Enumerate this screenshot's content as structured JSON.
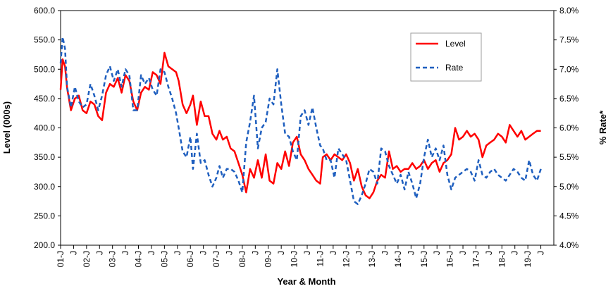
{
  "chart_data": {
    "type": "line",
    "title": "",
    "xlabel": "Year & Month",
    "ylabel_left": "Level (000s)",
    "ylabel_right": "% Rate*",
    "ylim_left": [
      200,
      600
    ],
    "ylim_right": [
      4.0,
      8.0
    ],
    "yticks_left": [
      "200.0",
      "250.0",
      "300.0",
      "350.0",
      "400.0",
      "450.0",
      "500.0",
      "550.0",
      "600.0"
    ],
    "yticks_right": [
      "4.0%",
      "4.5%",
      "5.0%",
      "5.5%",
      "6.0%",
      "6.5%",
      "7.0%",
      "7.5%",
      "8.0%"
    ],
    "xticks": [
      "01-J",
      "J",
      "02-J",
      "J",
      "03-J",
      "J",
      "04-J",
      "J",
      "05-J",
      "J",
      "06-J",
      "J",
      "07-J",
      "J",
      "08-J",
      "J",
      "09-J",
      "J",
      "10-J",
      "J",
      "11-J",
      "J",
      "12-J",
      "J",
      "13-J",
      "J",
      "14-J",
      "J",
      "15-J",
      "J",
      "16-J",
      "J",
      "17-J",
      "J",
      "18-J",
      "J",
      "19-J",
      "J"
    ],
    "grid": false,
    "legend_position": "top-right",
    "series": [
      {
        "name": "Level",
        "axis": "left",
        "color": "#ff0000",
        "style": "solid",
        "x": [
          2001.0,
          2001.08,
          2001.17,
          2001.25,
          2001.4,
          2001.55,
          2001.7,
          2001.85,
          2002.0,
          2002.15,
          2002.3,
          2002.45,
          2002.6,
          2002.75,
          2002.9,
          2003.05,
          2003.2,
          2003.35,
          2003.5,
          2003.65,
          2003.8,
          2003.95,
          2004.1,
          2004.25,
          2004.4,
          2004.55,
          2004.7,
          2004.85,
          2005.0,
          2005.15,
          2005.3,
          2005.45,
          2005.55,
          2005.7,
          2005.85,
          2006.0,
          2006.1,
          2006.25,
          2006.4,
          2006.55,
          2006.7,
          2006.85,
          2007.0,
          2007.12,
          2007.25,
          2007.4,
          2007.55,
          2007.7,
          2007.85,
          2008.0,
          2008.15,
          2008.3,
          2008.45,
          2008.6,
          2008.75,
          2008.9,
          2009.05,
          2009.2,
          2009.35,
          2009.5,
          2009.65,
          2009.8,
          2009.95,
          2010.1,
          2010.25,
          2010.4,
          2010.55,
          2010.7,
          2010.85,
          2011.0,
          2011.1,
          2011.25,
          2011.4,
          2011.55,
          2011.7,
          2011.85,
          2012.0,
          2012.15,
          2012.3,
          2012.45,
          2012.6,
          2012.75,
          2012.9,
          2013.05,
          2013.2,
          2013.35,
          2013.5,
          2013.65,
          2013.8,
          2013.95,
          2014.1,
          2014.25,
          2014.4,
          2014.55,
          2014.7,
          2014.85,
          2015.0,
          2015.15,
          2015.3,
          2015.45,
          2015.6,
          2015.75,
          2015.9,
          2016.05,
          2016.2,
          2016.35,
          2016.5,
          2016.65,
          2016.8,
          2016.95,
          2017.1,
          2017.25,
          2017.4,
          2017.55,
          2017.7,
          2017.85,
          2018.0,
          2018.15,
          2018.3,
          2018.45,
          2018.6,
          2018.75,
          2018.9,
          2019.05,
          2019.2,
          2019.35,
          2019.5
        ],
        "values": [
          465,
          517,
          505,
          468,
          430,
          450,
          455,
          430,
          425,
          445,
          440,
          420,
          413,
          460,
          475,
          470,
          485,
          460,
          490,
          480,
          445,
          430,
          460,
          470,
          465,
          495,
          490,
          475,
          528,
          505,
          500,
          495,
          480,
          440,
          425,
          440,
          455,
          405,
          445,
          420,
          420,
          390,
          380,
          395,
          380,
          385,
          365,
          360,
          340,
          320,
          290,
          330,
          315,
          345,
          315,
          355,
          310,
          305,
          340,
          330,
          360,
          335,
          375,
          385,
          355,
          345,
          330,
          320,
          310,
          305,
          350,
          355,
          345,
          355,
          350,
          345,
          355,
          340,
          310,
          330,
          300,
          285,
          280,
          290,
          310,
          320,
          315,
          360,
          330,
          335,
          325,
          330,
          330,
          340,
          330,
          335,
          345,
          330,
          340,
          345,
          325,
          340,
          345,
          355,
          400,
          380,
          385,
          395,
          385,
          390,
          380,
          350,
          370,
          375,
          380,
          390,
          385,
          375,
          405,
          395,
          385,
          395,
          380,
          385,
          390,
          395,
          395
        ]
      },
      {
        "name": "Rate",
        "axis": "right",
        "color": "#1f5fbf",
        "style": "dashed",
        "x": [
          2001.0,
          2001.08,
          2001.17,
          2001.25,
          2001.4,
          2001.55,
          2001.7,
          2001.85,
          2002.0,
          2002.15,
          2002.3,
          2002.45,
          2002.6,
          2002.75,
          2002.9,
          2003.05,
          2003.2,
          2003.35,
          2003.5,
          2003.65,
          2003.8,
          2003.95,
          2004.1,
          2004.25,
          2004.4,
          2004.55,
          2004.7,
          2004.85,
          2005.0,
          2005.15,
          2005.3,
          2005.45,
          2005.55,
          2005.7,
          2005.85,
          2006.0,
          2006.1,
          2006.25,
          2006.4,
          2006.55,
          2006.7,
          2006.85,
          2007.0,
          2007.12,
          2007.25,
          2007.4,
          2007.55,
          2007.7,
          2007.85,
          2008.0,
          2008.15,
          2008.3,
          2008.45,
          2008.6,
          2008.75,
          2008.9,
          2009.05,
          2009.2,
          2009.35,
          2009.5,
          2009.65,
          2009.8,
          2009.95,
          2010.1,
          2010.25,
          2010.4,
          2010.55,
          2010.7,
          2010.85,
          2011.0,
          2011.1,
          2011.25,
          2011.4,
          2011.55,
          2011.7,
          2011.85,
          2012.0,
          2012.15,
          2012.3,
          2012.45,
          2012.6,
          2012.75,
          2012.9,
          2013.05,
          2013.2,
          2013.35,
          2013.5,
          2013.65,
          2013.8,
          2013.95,
          2014.1,
          2014.25,
          2014.4,
          2014.55,
          2014.7,
          2014.85,
          2015.0,
          2015.15,
          2015.3,
          2015.45,
          2015.6,
          2015.75,
          2015.9,
          2016.05,
          2016.2,
          2016.35,
          2016.5,
          2016.65,
          2016.8,
          2016.95,
          2017.1,
          2017.25,
          2017.4,
          2017.55,
          2017.7,
          2017.85,
          2018.0,
          2018.15,
          2018.3,
          2018.45,
          2018.6,
          2018.75,
          2018.9,
          2019.05,
          2019.2,
          2019.35,
          2019.5
        ],
        "values": [
          7.1,
          7.55,
          7.35,
          6.7,
          6.35,
          6.7,
          6.45,
          6.35,
          6.4,
          6.75,
          6.55,
          6.3,
          6.55,
          6.9,
          7.05,
          6.8,
          7.0,
          6.7,
          7.0,
          6.9,
          6.3,
          6.3,
          6.9,
          6.75,
          6.85,
          6.65,
          6.55,
          7.0,
          6.95,
          6.7,
          6.5,
          6.25,
          6.0,
          5.6,
          5.5,
          5.85,
          5.3,
          5.9,
          5.4,
          5.45,
          5.2,
          5.0,
          5.15,
          5.35,
          5.15,
          5.3,
          5.3,
          5.25,
          5.1,
          4.9,
          5.75,
          6.1,
          6.55,
          5.65,
          6.0,
          6.1,
          6.5,
          6.4,
          7.0,
          6.4,
          5.9,
          5.85,
          5.6,
          5.45,
          6.2,
          6.3,
          6.05,
          6.35,
          6.0,
          5.7,
          5.65,
          5.45,
          5.45,
          5.15,
          5.65,
          5.55,
          5.45,
          5.1,
          4.75,
          4.7,
          4.85,
          5.05,
          5.3,
          5.25,
          5.05,
          5.65,
          5.6,
          5.35,
          5.2,
          5.05,
          5.2,
          4.95,
          5.25,
          5.05,
          4.8,
          5.05,
          5.5,
          5.8,
          5.5,
          5.65,
          5.45,
          5.7,
          5.2,
          4.95,
          5.15,
          5.2,
          5.25,
          5.3,
          5.25,
          5.1,
          5.45,
          5.2,
          5.15,
          5.25,
          5.3,
          5.2,
          5.15,
          5.1,
          5.2,
          5.3,
          5.25,
          5.15,
          5.1,
          5.45,
          5.2,
          5.1,
          5.3
        ]
      }
    ]
  }
}
